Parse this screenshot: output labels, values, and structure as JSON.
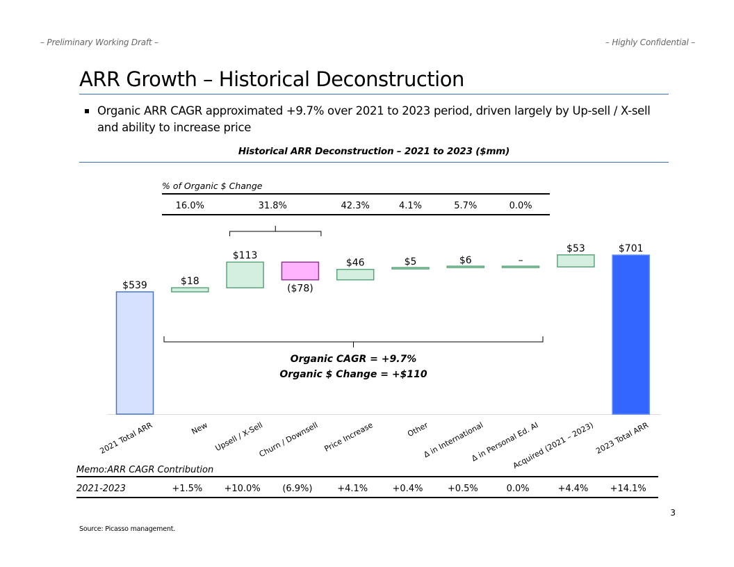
{
  "header": {
    "left": "– Preliminary Working Draft –",
    "right": "– Highly Confidential –"
  },
  "title": "ARR Growth – Historical Deconstruction",
  "bullet": "Organic ARR CAGR approximated +9.7% over 2021 to 2023 period, driven largely by Up-sell / X-sell and ability to increase price",
  "chart_title": "Historical ARR Deconstruction – 2021 to 2023 ($mm)",
  "colors": {
    "rule": "#3a6fb5",
    "start_fill": "#d6e0ff",
    "start_stroke": "#4a74c9",
    "end_fill": "#3366ff",
    "positive_fill": "#d4efe0",
    "positive_stroke": "#5aa57b",
    "negative_fill": "#ffb3ff",
    "negative_stroke": "#8c3a8c"
  },
  "chart_data": {
    "type": "waterfall",
    "title": "Historical ARR Deconstruction – 2021 to 2023 ($mm)",
    "xlabel": "",
    "ylabel": "",
    "ylim": [
      0,
      720
    ],
    "grid": false,
    "legend": "none",
    "categories": [
      "2021 Total ARR",
      "New",
      "Upsell / X-Sell",
      "Churn / Downsell",
      "Price Increase",
      "Other",
      "Δ in International",
      "Δ in Personal Ed. AI",
      "Acquired (2021 – 2023)",
      "2023 Total ARR"
    ],
    "values": [
      539,
      18,
      113,
      -78,
      46,
      5,
      6,
      0,
      53,
      701
    ],
    "kinds": [
      "total",
      "delta",
      "delta",
      "delta",
      "delta",
      "delta",
      "delta",
      "delta",
      "delta",
      "total"
    ],
    "labels": [
      "$539",
      "$18",
      "$113",
      "($78)",
      "$46",
      "$5",
      "$6",
      "–",
      "$53",
      "$701"
    ],
    "pct_of_organic": {
      "label": "% of Organic $ Change",
      "values": [
        "16.0%",
        "31.8%",
        "42.3%",
        "4.1%",
        "5.7%",
        "0.0%"
      ],
      "spans": [
        [
          1,
          1
        ],
        [
          2,
          3
        ],
        [
          4,
          4
        ],
        [
          5,
          5
        ],
        [
          6,
          6
        ],
        [
          7,
          7
        ]
      ]
    },
    "annotation": {
      "line1": "Organic CAGR = +9.7%",
      "line2": "Organic $ Change = +$110"
    },
    "memo": {
      "label": "Memo:ARR CAGR Contribution",
      "row_label": "2021-2023",
      "values": [
        "+1.5%",
        "+10.0%",
        "(6.9%)",
        "+4.1%",
        "+0.4%",
        "+0.5%",
        "0.0%",
        "+4.4%",
        "+14.1%"
      ]
    }
  },
  "footer": {
    "source": "Source: Picasso management.",
    "page": "3"
  }
}
